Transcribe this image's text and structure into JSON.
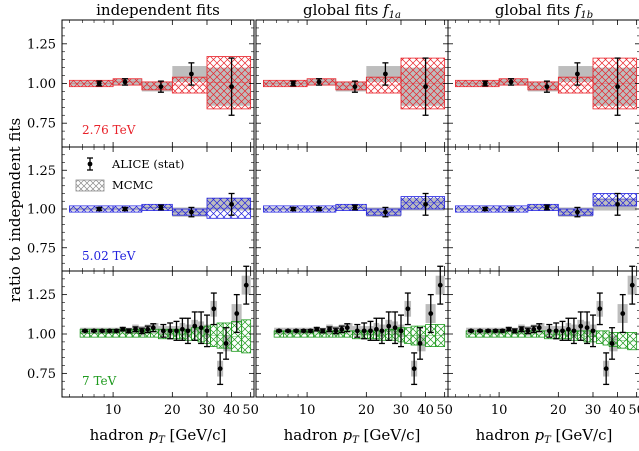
{
  "figure": {
    "ylabel": "ratio to independent fits",
    "xlabel": "hadron $p_T$ [GeV/c]",
    "xlabel_main": "hadron ",
    "xlabel_var": "p",
    "xlabel_sub": "T",
    "xlabel_unit": " [GeV/c]",
    "columns": [
      {
        "title_main": "independent fits",
        "title_var": "",
        "title_sub": ""
      },
      {
        "title_main": "global fits ",
        "title_var": "f",
        "title_sub": "1a"
      },
      {
        "title_main": "global fits ",
        "title_var": "f",
        "title_sub": "1b"
      }
    ],
    "rows": [
      {
        "label": "2.76 TeV",
        "color": "#e8222a",
        "ylim": [
          0.6,
          1.4
        ],
        "yticks": [
          "0.75",
          "1.00",
          "1.25"
        ]
      },
      {
        "label": "5.02 TeV",
        "color": "#2222dd",
        "ylim": [
          0.6,
          1.4
        ],
        "yticks": [
          "0.75",
          "1.00",
          "1.25"
        ]
      },
      {
        "label": "7 TeV",
        "color": "#1e9a1e",
        "ylim": [
          0.6,
          1.4
        ],
        "yticks": [
          "0.75",
          "1.00",
          "1.25"
        ]
      }
    ],
    "legend": {
      "data_label": "ALICE (stat)",
      "band_label": "MCMC"
    },
    "xaxis": {
      "scale": "log",
      "xlim": [
        5.5,
        52
      ],
      "tick_labels": [
        "10",
        "20",
        "30",
        "40",
        "50"
      ]
    },
    "grey_color": "#bdbdbd"
  },
  "chart_data": [
    {
      "type": "scatter",
      "name": "2.76 TeV",
      "x": [
        8.5,
        11.5,
        17.5,
        25.0,
        40.0
      ],
      "y": [
        1.0,
        1.01,
        0.98,
        1.06,
        0.98
      ],
      "yerr": [
        0.015,
        0.02,
        0.035,
        0.07,
        0.18
      ],
      "bins": [
        [
          6.0,
          10.0
        ],
        [
          10.0,
          14.0
        ],
        [
          14.0,
          20.0
        ],
        [
          20.0,
          30.0
        ],
        [
          30.0,
          50.0
        ]
      ],
      "grey_boxes": {
        "independent fits": [
          0.015,
          0.02,
          0.03,
          0.05,
          0.12
        ],
        "global fits f1a": [
          0.015,
          0.02,
          0.03,
          0.05,
          0.12
        ],
        "global fits f1b": [
          0.015,
          0.02,
          0.03,
          0.05,
          0.12
        ]
      },
      "bands": {
        "independent fits": [
          [
            0.98,
            1.02
          ],
          [
            0.99,
            1.03
          ],
          [
            0.96,
            1.01
          ],
          [
            0.94,
            1.04
          ],
          [
            0.84,
            1.17
          ]
        ],
        "global fits f1a": [
          [
            0.98,
            1.02
          ],
          [
            0.99,
            1.03
          ],
          [
            0.96,
            1.01
          ],
          [
            0.94,
            1.04
          ],
          [
            0.84,
            1.16
          ]
        ],
        "global fits f1b": [
          [
            0.98,
            1.02
          ],
          [
            0.99,
            1.03
          ],
          [
            0.96,
            1.01
          ],
          [
            0.94,
            1.04
          ],
          [
            0.84,
            1.16
          ]
        ]
      }
    },
    {
      "type": "scatter",
      "name": "5.02 TeV",
      "x": [
        8.5,
        11.5,
        17.5,
        25.0,
        40.0
      ],
      "y": [
        1.0,
        1.0,
        1.01,
        0.98,
        1.03
      ],
      "yerr": [
        0.01,
        0.01,
        0.015,
        0.03,
        0.07
      ],
      "bins": [
        [
          6.0,
          10.0
        ],
        [
          10.0,
          14.0
        ],
        [
          14.0,
          20.0
        ],
        [
          20.0,
          30.0
        ],
        [
          30.0,
          50.0
        ]
      ],
      "grey_boxes": {
        "independent fits": [
          0.01,
          0.01,
          0.015,
          0.03,
          0.04
        ],
        "global fits f1a": [
          0.01,
          0.01,
          0.015,
          0.03,
          0.04
        ],
        "global fits f1b": [
          0.01,
          0.01,
          0.015,
          0.03,
          0.04
        ]
      },
      "bands": {
        "independent fits": [
          [
            0.98,
            1.02
          ],
          [
            0.98,
            1.02
          ],
          [
            0.99,
            1.03
          ],
          [
            0.96,
            1.0
          ],
          [
            0.94,
            1.07
          ]
        ],
        "global fits f1a": [
          [
            0.98,
            1.02
          ],
          [
            0.98,
            1.02
          ],
          [
            0.99,
            1.03
          ],
          [
            0.96,
            1.0
          ],
          [
            1.0,
            1.08
          ]
        ],
        "global fits f1b": [
          [
            0.98,
            1.02
          ],
          [
            0.98,
            1.02
          ],
          [
            0.99,
            1.03
          ],
          [
            0.96,
            1.0
          ],
          [
            1.02,
            1.1
          ]
        ]
      }
    },
    {
      "type": "scatter",
      "name": "7 TeV",
      "x": [
        7.2,
        8.0,
        8.8,
        9.6,
        10.4,
        11.2,
        12.0,
        13.0,
        14.0,
        15.0,
        16.0,
        18.0,
        19.5,
        21.0,
        22.5,
        24.0,
        26.0,
        28.0,
        30.0,
        32.5,
        35.0,
        37.5,
        42.5,
        47.5
      ],
      "y": [
        1.02,
        1.02,
        1.02,
        1.02,
        1.02,
        1.03,
        1.02,
        1.03,
        1.02,
        1.03,
        1.04,
        1.02,
        1.02,
        1.02,
        1.03,
        1.02,
        1.05,
        1.04,
        1.02,
        1.16,
        0.78,
        0.94,
        1.13,
        1.31
      ],
      "yerr": [
        0.005,
        0.005,
        0.006,
        0.007,
        0.008,
        0.01,
        0.012,
        0.015,
        0.017,
        0.02,
        0.025,
        0.04,
        0.05,
        0.06,
        0.07,
        0.08,
        0.09,
        0.1,
        0.1,
        0.1,
        0.1,
        0.1,
        0.12,
        0.12
      ],
      "bins": [
        [
          6.8,
          7.6
        ],
        [
          7.6,
          8.4
        ],
        [
          8.4,
          9.2
        ],
        [
          9.2,
          10.0
        ],
        [
          10.0,
          10.8
        ],
        [
          10.8,
          11.6
        ],
        [
          11.6,
          12.5
        ],
        [
          12.5,
          13.5
        ],
        [
          13.5,
          14.5
        ],
        [
          14.5,
          15.5
        ],
        [
          15.5,
          17.0
        ],
        [
          17.0,
          19.0
        ],
        [
          19.0,
          20.25
        ],
        [
          20.25,
          21.75
        ],
        [
          21.75,
          23.25
        ],
        [
          23.25,
          25.0
        ],
        [
          25.0,
          27.0
        ],
        [
          27.0,
          29.0
        ],
        [
          29.0,
          31.25
        ],
        [
          31.25,
          33.75
        ],
        [
          33.75,
          36.25
        ],
        [
          36.25,
          40.0
        ],
        [
          40.0,
          45.0
        ],
        [
          45.0,
          50.0
        ]
      ],
      "grey_boxes": {
        "independent fits": [
          0.02,
          0.02,
          0.02,
          0.02,
          0.02,
          0.02,
          0.02,
          0.03,
          0.03,
          0.03,
          0.03,
          0.03,
          0.03,
          0.03,
          0.04,
          0.04,
          0.04,
          0.04,
          0.04,
          0.05,
          0.05,
          0.05,
          0.06,
          0.06
        ],
        "global fits f1a": [
          0.02,
          0.02,
          0.02,
          0.02,
          0.02,
          0.02,
          0.02,
          0.03,
          0.03,
          0.03,
          0.03,
          0.03,
          0.03,
          0.03,
          0.04,
          0.04,
          0.04,
          0.04,
          0.04,
          0.05,
          0.05,
          0.05,
          0.06,
          0.06
        ],
        "global fits f1b": [
          0.02,
          0.02,
          0.02,
          0.02,
          0.02,
          0.02,
          0.02,
          0.03,
          0.03,
          0.03,
          0.03,
          0.03,
          0.03,
          0.03,
          0.04,
          0.04,
          0.04,
          0.04,
          0.04,
          0.05,
          0.05,
          0.05,
          0.06,
          0.06
        ]
      },
      "bands": {
        "independent fits": [
          [
            0.98,
            1.03
          ],
          [
            0.98,
            1.03
          ],
          [
            0.98,
            1.03
          ],
          [
            0.98,
            1.03
          ],
          [
            0.98,
            1.03
          ],
          [
            0.98,
            1.03
          ],
          [
            0.98,
            1.03
          ],
          [
            0.98,
            1.03
          ],
          [
            0.98,
            1.03
          ],
          [
            0.98,
            1.03
          ],
          [
            0.98,
            1.03
          ],
          [
            0.97,
            1.03
          ],
          [
            0.97,
            1.03
          ],
          [
            0.97,
            1.03
          ],
          [
            0.97,
            1.03
          ],
          [
            0.96,
            1.03
          ],
          [
            0.96,
            1.04
          ],
          [
            0.95,
            1.04
          ],
          [
            0.94,
            1.05
          ],
          [
            0.92,
            1.06
          ],
          [
            0.91,
            1.07
          ],
          [
            0.91,
            1.07
          ],
          [
            0.89,
            1.08
          ],
          [
            0.88,
            1.09
          ]
        ],
        "global fits f1a": [
          [
            0.98,
            1.02
          ],
          [
            0.98,
            1.02
          ],
          [
            0.98,
            1.02
          ],
          [
            0.98,
            1.02
          ],
          [
            0.98,
            1.02
          ],
          [
            0.98,
            1.02
          ],
          [
            0.98,
            1.02
          ],
          [
            0.98,
            1.02
          ],
          [
            0.98,
            1.02
          ],
          [
            0.98,
            1.02
          ],
          [
            0.98,
            1.02
          ],
          [
            0.97,
            1.02
          ],
          [
            0.97,
            1.02
          ],
          [
            0.97,
            1.02
          ],
          [
            0.97,
            1.02
          ],
          [
            0.96,
            1.02
          ],
          [
            0.96,
            1.03
          ],
          [
            0.96,
            1.03
          ],
          [
            0.95,
            1.04
          ],
          [
            0.94,
            1.04
          ],
          [
            0.93,
            1.05
          ],
          [
            0.93,
            1.05
          ],
          [
            0.92,
            1.06
          ],
          [
            0.92,
            1.06
          ]
        ],
        "global fits f1b": [
          [
            0.98,
            1.02
          ],
          [
            0.98,
            1.02
          ],
          [
            0.98,
            1.02
          ],
          [
            0.98,
            1.02
          ],
          [
            0.98,
            1.02
          ],
          [
            0.98,
            1.02
          ],
          [
            0.98,
            1.02
          ],
          [
            0.98,
            1.02
          ],
          [
            0.98,
            1.02
          ],
          [
            0.98,
            1.02
          ],
          [
            0.98,
            1.02
          ],
          [
            0.97,
            1.02
          ],
          [
            0.97,
            1.02
          ],
          [
            0.97,
            1.02
          ],
          [
            0.97,
            1.02
          ],
          [
            0.96,
            1.02
          ],
          [
            0.96,
            1.02
          ],
          [
            0.95,
            1.02
          ],
          [
            0.95,
            1.02
          ],
          [
            0.94,
            1.02
          ],
          [
            0.93,
            1.02
          ],
          [
            0.92,
            1.01
          ],
          [
            0.91,
            1.01
          ],
          [
            0.9,
            1.01
          ]
        ]
      }
    }
  ]
}
